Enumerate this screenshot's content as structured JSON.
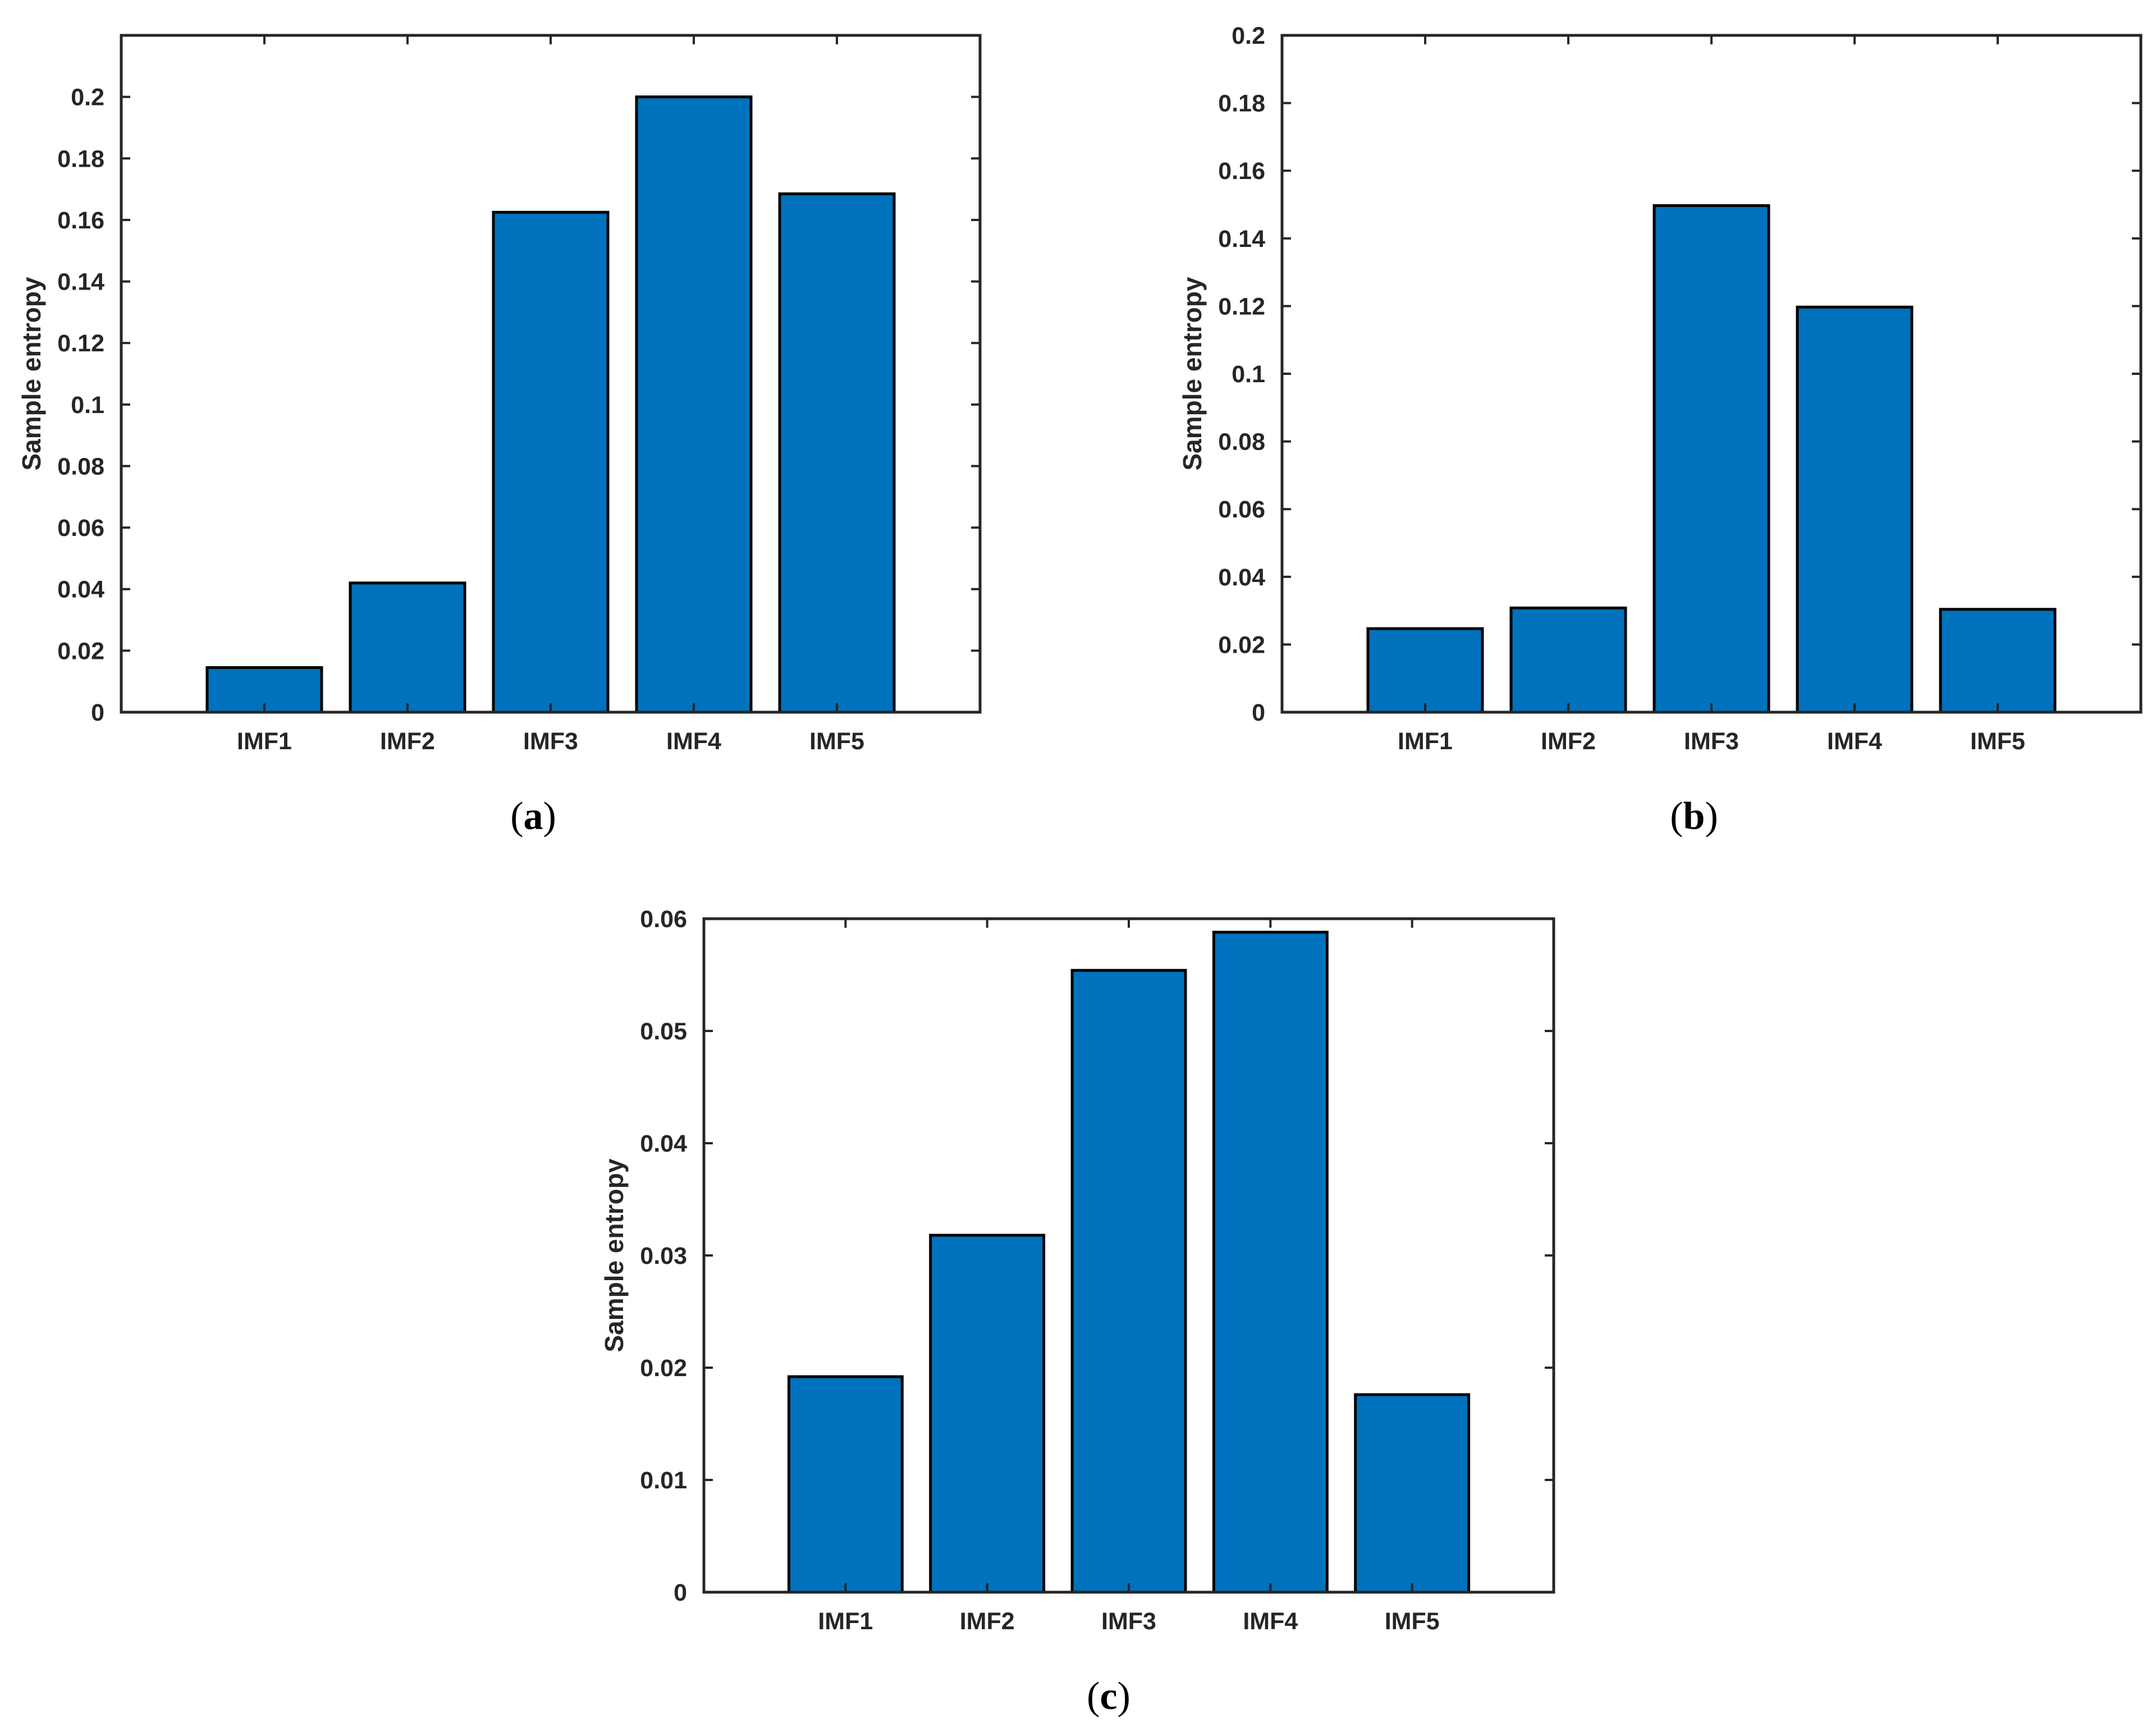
{
  "colors": {
    "bar_fill": "#0072BD",
    "bar_edge": "#000000",
    "axis": "#262626"
  },
  "chart_data": [
    {
      "type": "bar",
      "caption": {
        "open": "(",
        "letter": "a",
        "close": ")"
      },
      "categories": [
        "IMF1",
        "IMF2",
        "IMF3",
        "IMF4",
        "IMF5"
      ],
      "values": [
        0.0145,
        0.042,
        0.1625,
        0.2,
        0.1685
      ],
      "xlabel": "",
      "ylabel": "Sample entropy",
      "ylim": [
        0,
        0.22
      ],
      "yticks": [
        0,
        0.02,
        0.04,
        0.06,
        0.08,
        0.1,
        0.12,
        0.14,
        0.16,
        0.18,
        0.2
      ],
      "ytick_labels": [
        "0",
        "0.02",
        "0.04",
        "0.06",
        "0.08",
        "0.1",
        "0.12",
        "0.14",
        "0.16",
        "0.18",
        "0.2"
      ],
      "xlim": [
        0,
        6
      ],
      "grid": false
    },
    {
      "type": "bar",
      "caption": {
        "open": "(",
        "letter": "b",
        "close": ")"
      },
      "categories": [
        "IMF1",
        "IMF2",
        "IMF3",
        "IMF4",
        "IMF5"
      ],
      "values": [
        0.0247,
        0.0308,
        0.1497,
        0.1197,
        0.0304
      ],
      "xlabel": "",
      "ylabel": "Sample entropy",
      "ylim": [
        0,
        0.2
      ],
      "yticks": [
        0,
        0.02,
        0.04,
        0.06,
        0.08,
        0.1,
        0.12,
        0.14,
        0.16,
        0.18,
        0.2
      ],
      "ytick_labels": [
        "0",
        "0.02",
        "0.04",
        "0.06",
        "0.08",
        "0.1",
        "0.12",
        "0.14",
        "0.16",
        "0.18",
        "0.2"
      ],
      "xlim": [
        0,
        6
      ],
      "grid": false
    },
    {
      "type": "bar",
      "caption": {
        "open": "(",
        "letter": "c",
        "close": ")"
      },
      "categories": [
        "IMF1",
        "IMF2",
        "IMF3",
        "IMF4",
        "IMF5"
      ],
      "values": [
        0.0192,
        0.0318,
        0.0554,
        0.0588,
        0.0176
      ],
      "xlabel": "",
      "ylabel": "Sample entropy",
      "ylim": [
        0,
        0.06
      ],
      "yticks": [
        0,
        0.01,
        0.02,
        0.03,
        0.04,
        0.05,
        0.06
      ],
      "ytick_labels": [
        "0",
        "0.01",
        "0.02",
        "0.03",
        "0.04",
        "0.05",
        "0.06"
      ],
      "xlim": [
        0,
        6
      ],
      "grid": false
    }
  ]
}
